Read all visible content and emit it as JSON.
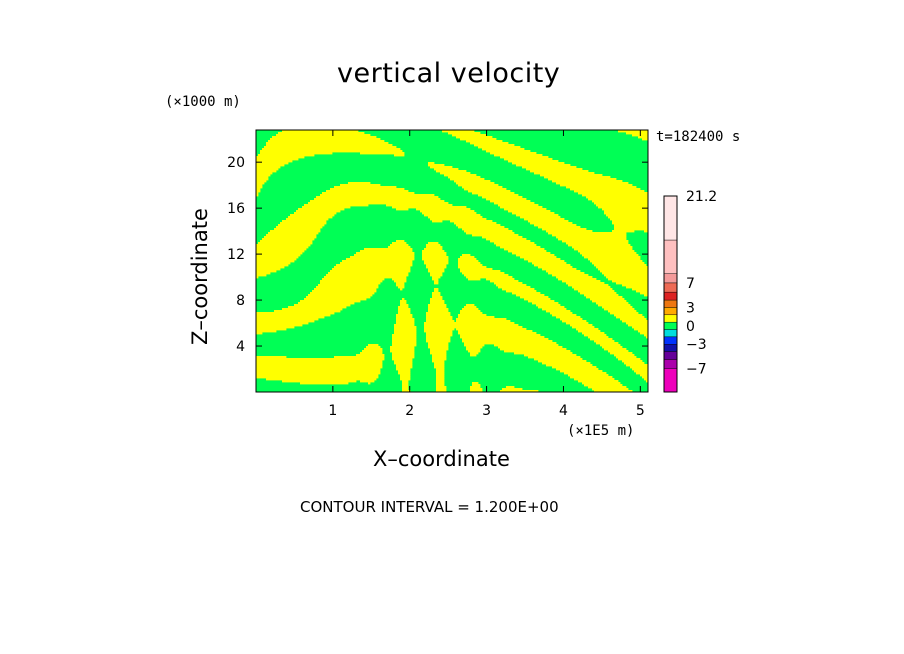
{
  "chart_data": {
    "type": "heatmap",
    "title": "vertical velocity",
    "xlabel": "X–coordinate",
    "ylabel": "Z–coordinate",
    "x_unit": "(×1E5 m)",
    "y_unit": "(×1000 m)",
    "timestamp": "t=182400 s",
    "contour_interval": "CONTOUR INTERVAL = 1.200E+00",
    "xlim": [
      0,
      5.1
    ],
    "ylim": [
      0,
      22.8
    ],
    "x_ticks": [
      1,
      2,
      3,
      4,
      5
    ],
    "y_ticks": [
      4,
      8,
      12,
      16,
      20
    ],
    "colorbar": {
      "range": [
        -10.8,
        21.2
      ],
      "labels": [
        {
          "value": 21.2,
          "text": "21.2"
        },
        {
          "value": 7,
          "text": "7"
        },
        {
          "value": 3,
          "text": "3"
        },
        {
          "value": 0,
          "text": "0"
        },
        {
          "value": -3,
          "text": "−3"
        },
        {
          "value": -7,
          "text": "−7"
        }
      ],
      "bands": [
        {
          "from": 14.0,
          "to": 21.2,
          "color": "#ffe6e6"
        },
        {
          "from": 8.5,
          "to": 14.0,
          "color": "#ffc0c0"
        },
        {
          "from": 7.0,
          "to": 8.5,
          "color": "#f49a9a"
        },
        {
          "from": 5.5,
          "to": 7.0,
          "color": "#ee6a55"
        },
        {
          "from": 4.2,
          "to": 5.5,
          "color": "#dd2222"
        },
        {
          "from": 3.0,
          "to": 4.2,
          "color": "#ee7711"
        },
        {
          "from": 1.8,
          "to": 3.0,
          "color": "#ffaa00"
        },
        {
          "from": 0.6,
          "to": 1.8,
          "color": "#ffff00"
        },
        {
          "from": -0.6,
          "to": 0.6,
          "color": "#00ff55"
        },
        {
          "from": -1.8,
          "to": -0.6,
          "color": "#00dddd"
        },
        {
          "from": -3.0,
          "to": -1.8,
          "color": "#0033ff"
        },
        {
          "from": -4.2,
          "to": -3.0,
          "color": "#1111aa"
        },
        {
          "from": -5.5,
          "to": -4.2,
          "color": "#660099"
        },
        {
          "from": -7.0,
          "to": -5.5,
          "color": "#aa00aa"
        },
        {
          "from": -10.8,
          "to": -7.0,
          "color": "#ee00bb"
        }
      ]
    },
    "field_colors": {
      "positive": "#ffff00",
      "negative": "#00ff55"
    }
  }
}
